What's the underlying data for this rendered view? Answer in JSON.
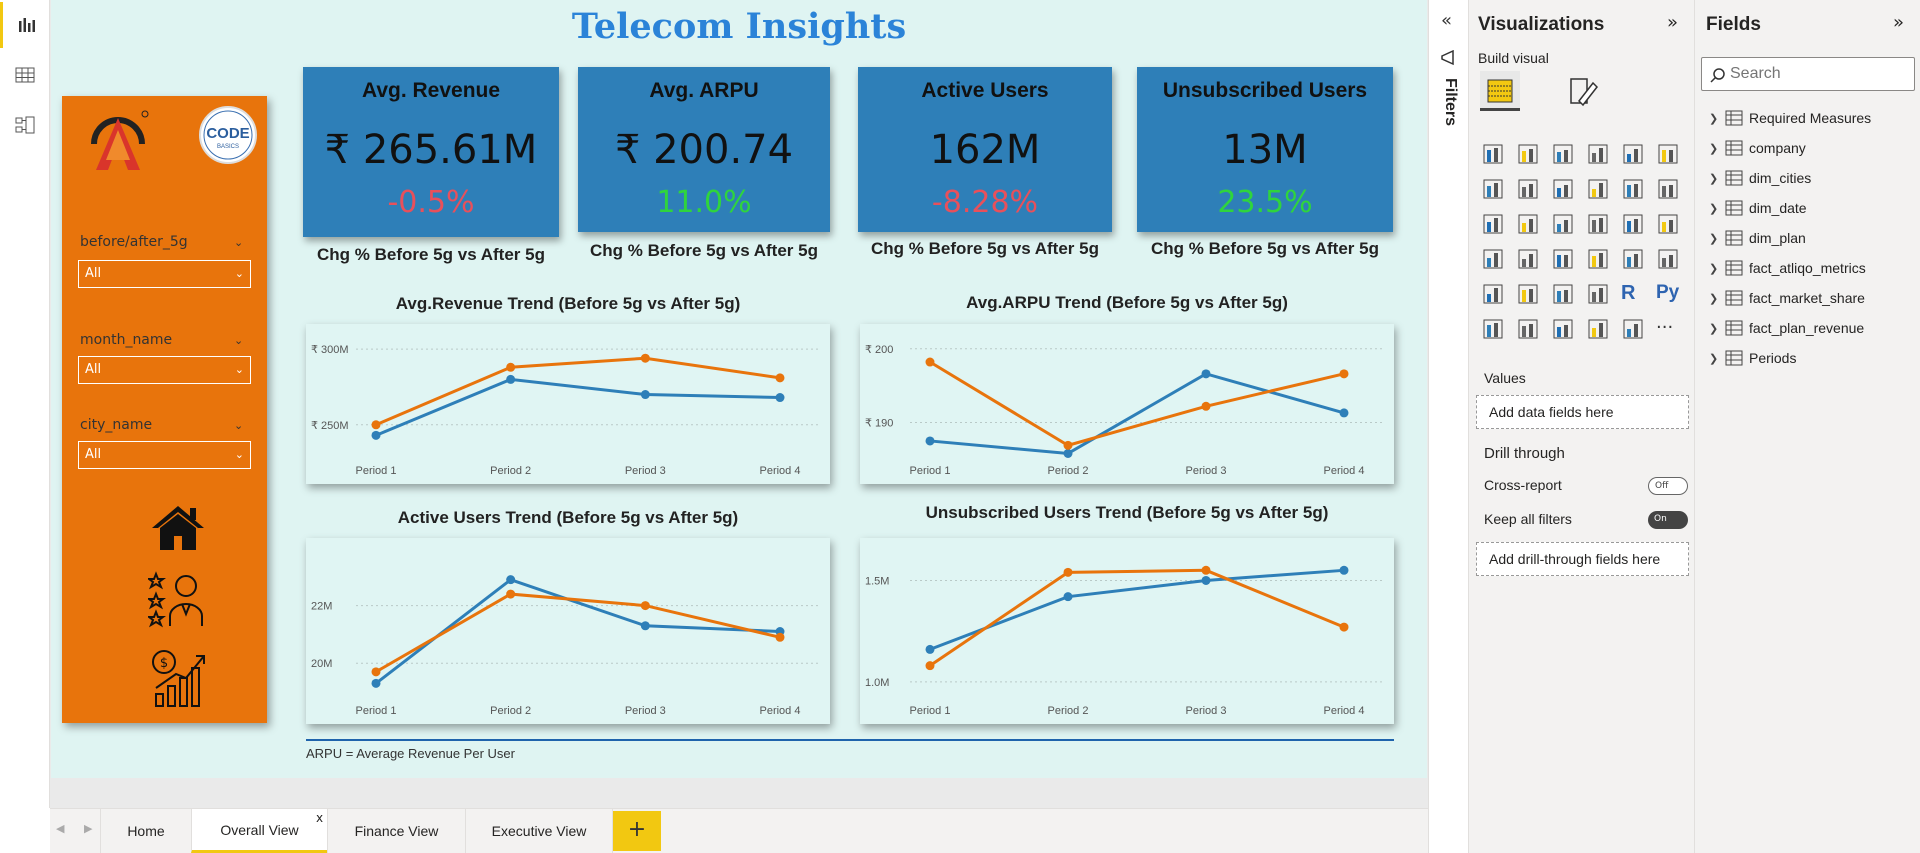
{
  "report_title": "Telecom Insights",
  "left_rail": {
    "icons": [
      "report-icon",
      "table-icon",
      "model-icon"
    ]
  },
  "slicers": [
    {
      "label": "before/after_5g",
      "value": "All"
    },
    {
      "label": "month_name",
      "value": "All"
    },
    {
      "label": "city_name",
      "value": "All"
    }
  ],
  "nav_icons": [
    "home-icon",
    "customer-rating-icon",
    "revenue-growth-icon"
  ],
  "kpis": [
    {
      "title": "Avg. Revenue",
      "value": "₹ 265.61M",
      "change": "-0.5%",
      "change_color": "#e8505b",
      "subtitle": "Chg % Before 5g vs After 5g"
    },
    {
      "title": "Avg. ARPU",
      "value": "₹ 200.74",
      "change": "11.0%",
      "change_color": "#2fd43d",
      "subtitle": "Chg % Before 5g vs After 5g"
    },
    {
      "title": "Active Users",
      "value": "162M",
      "change": "-8.28%",
      "change_color": "#e8505b",
      "subtitle": "Chg % Before 5g vs After 5g"
    },
    {
      "title": "Unsubscribed Users",
      "value": "13M",
      "change": "23.5%",
      "change_color": "#2fd43d",
      "subtitle": "Chg % Before 5g vs After 5g"
    }
  ],
  "chart_data": [
    {
      "type": "line",
      "title": "Avg.Revenue Trend (Before 5g vs After 5g)",
      "categories": [
        "Period 1",
        "Period 2",
        "Period 3",
        "Period 4"
      ],
      "ylim": [
        232,
        310
      ],
      "yticks": [
        {
          "v": 250,
          "label": "₹ 250M"
        },
        {
          "v": 300,
          "label": "₹ 300M"
        }
      ],
      "series": [
        {
          "color": "#2e7fb8",
          "values": [
            243,
            280,
            270,
            268
          ]
        },
        {
          "color": "#e8740c",
          "values": [
            250,
            288,
            294,
            281
          ]
        }
      ]
    },
    {
      "type": "line",
      "title": "Avg.ARPU Trend (Before 5g vs After 5g)",
      "categories": [
        "Period 1",
        "Period 2",
        "Period 3",
        "Period 4"
      ],
      "ylim": [
        186,
        202
      ],
      "yticks": [
        {
          "v": 190,
          "label": "₹ 190"
        },
        {
          "v": 200,
          "label": "₹ 200"
        }
      ],
      "series": [
        {
          "color": "#2e7fb8",
          "values": [
            187.5,
            185.8,
            196.6,
            191.3
          ]
        },
        {
          "color": "#e8740c",
          "values": [
            198.2,
            186.9,
            192.2,
            196.6
          ]
        }
      ]
    },
    {
      "type": "line",
      "title": "Active Users Trend (Before 5g vs After 5g)",
      "categories": [
        "Period 1",
        "Period 2",
        "Period 3",
        "Period 4"
      ],
      "ylim": [
        19,
        24
      ],
      "yticks": [
        {
          "v": 20,
          "label": "20M"
        },
        {
          "v": 22,
          "label": "22M"
        }
      ],
      "series": [
        {
          "color": "#2e7fb8",
          "values": [
            19.3,
            22.9,
            21.3,
            21.1
          ]
        },
        {
          "color": "#e8740c",
          "values": [
            19.7,
            22.4,
            22.0,
            20.9
          ]
        }
      ]
    },
    {
      "type": "line",
      "title": "Unsubscribed Users Trend (Before 5g vs After 5g)",
      "categories": [
        "Period 1",
        "Period 2",
        "Period 3",
        "Period 4"
      ],
      "ylim": [
        0.95,
        1.66
      ],
      "yticks": [
        {
          "v": 1.0,
          "label": "1.0M"
        },
        {
          "v": 1.5,
          "label": "1.5M"
        }
      ],
      "series": [
        {
          "color": "#2e7fb8",
          "values": [
            1.16,
            1.42,
            1.5,
            1.55
          ]
        },
        {
          "color": "#e8740c",
          "values": [
            1.08,
            1.54,
            1.55,
            1.27
          ]
        }
      ]
    }
  ],
  "footnote": "ARPU = Average Revenue Per User",
  "tabs": [
    {
      "label": "Home"
    },
    {
      "label": "Overall View",
      "active": true
    },
    {
      "label": "Finance View"
    },
    {
      "label": "Executive View"
    }
  ],
  "tab_close": "x",
  "add_page": "+",
  "filters_pane": {
    "label": "Filters"
  },
  "viz_pane": {
    "title": "Visualizations",
    "build_visual": "Build visual",
    "values_label": "Values",
    "values_placeholder": "Add data fields here",
    "drill_title": "Drill through",
    "cross_report": "Cross-report",
    "cross_report_state": "Off",
    "keep_filters": "Keep all filters",
    "keep_filters_state": "On",
    "drill_placeholder": "Add drill-through fields here",
    "r_label": "R",
    "py_label": "Py",
    "more_label": "···"
  },
  "fields_pane": {
    "title": "Fields",
    "search_placeholder": "Search",
    "items": [
      {
        "label": "Required Measures",
        "icon": "calculator-icon"
      },
      {
        "label": "company",
        "icon": "table-icon"
      },
      {
        "label": "dim_cities",
        "icon": "table-icon"
      },
      {
        "label": "dim_date",
        "icon": "table-icon"
      },
      {
        "label": "dim_plan",
        "icon": "table-icon"
      },
      {
        "label": "fact_atliqo_metrics",
        "icon": "table-icon"
      },
      {
        "label": "fact_market_share",
        "icon": "table-icon"
      },
      {
        "label": "fact_plan_revenue",
        "icon": "table-icon"
      },
      {
        "label": "Periods",
        "icon": "table-icon"
      }
    ]
  }
}
